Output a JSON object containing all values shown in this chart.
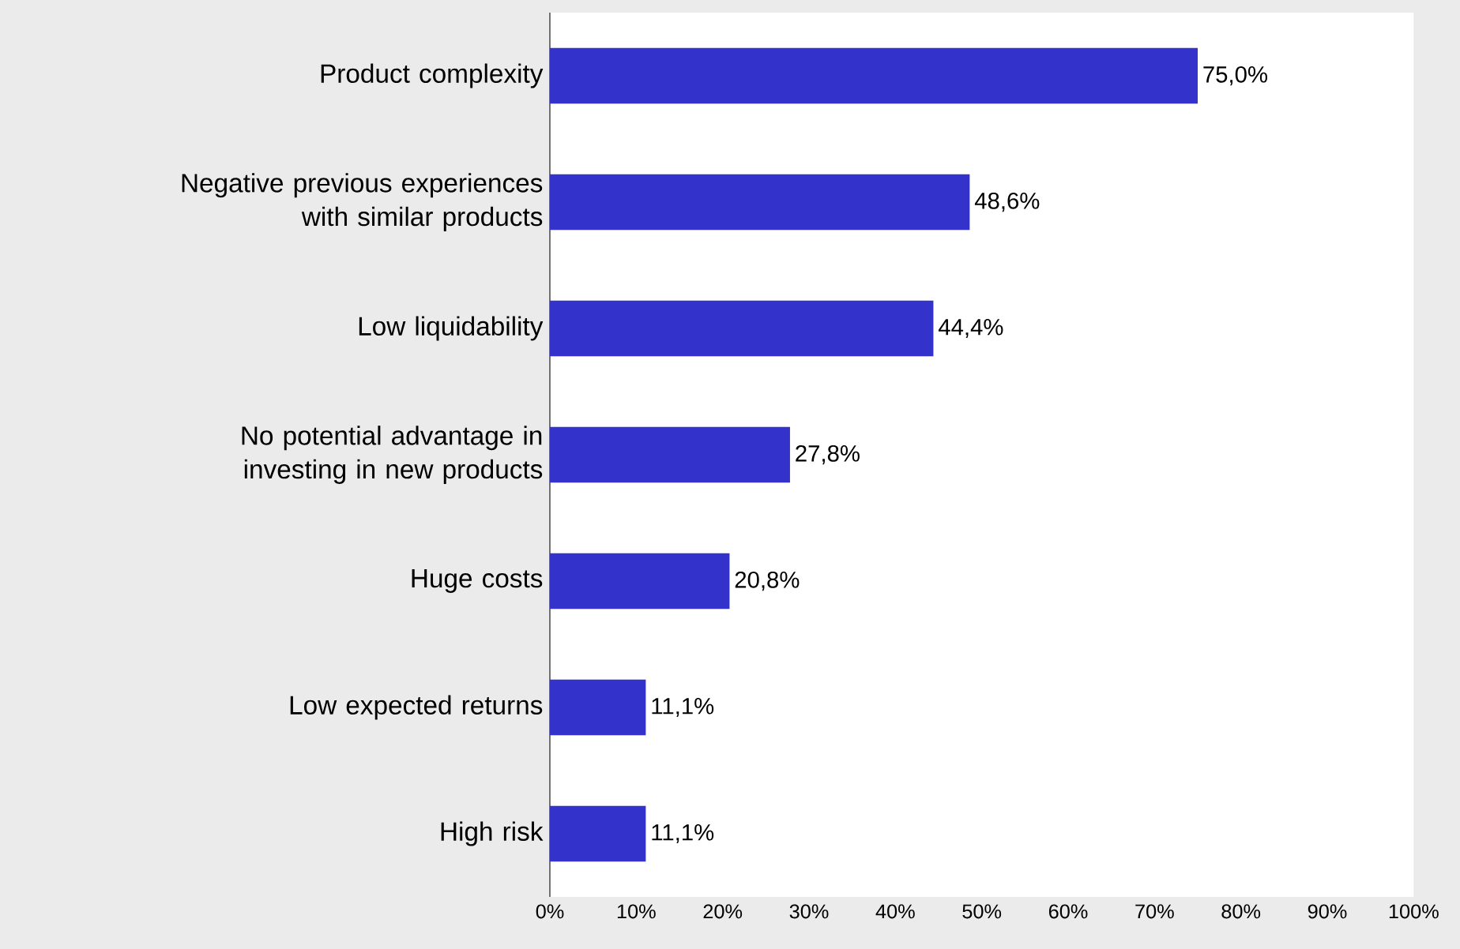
{
  "chart_data": {
    "type": "bar",
    "orientation": "horizontal",
    "color": "#3333cc",
    "categories": [
      "Product complexity",
      "Negative previous experiences with similar products",
      "Low liquidability",
      "No potential advantage in investing in new products",
      "Huge costs",
      "Low expected returns",
      "High risk"
    ],
    "values": [
      75.0,
      48.6,
      44.4,
      27.8,
      20.8,
      11.1,
      11.1
    ],
    "value_labels": [
      "75,0%",
      "48,6%",
      "44,4%",
      "27,8%",
      "20,8%",
      "11,1%",
      "11,1%"
    ],
    "xlim": [
      0,
      100
    ],
    "xticks": [
      {
        "value": 0,
        "label": "0%"
      },
      {
        "value": 10,
        "label": "10%"
      },
      {
        "value": 20,
        "label": "20%"
      },
      {
        "value": 30,
        "label": "30%"
      },
      {
        "value": 40,
        "label": "40%"
      },
      {
        "value": 50,
        "label": "50%"
      },
      {
        "value": 60,
        "label": "60%"
      },
      {
        "value": 70,
        "label": "70%"
      },
      {
        "value": 80,
        "label": "80%"
      },
      {
        "value": 90,
        "label": "90%"
      },
      {
        "value": 100,
        "label": "100%"
      }
    ]
  }
}
